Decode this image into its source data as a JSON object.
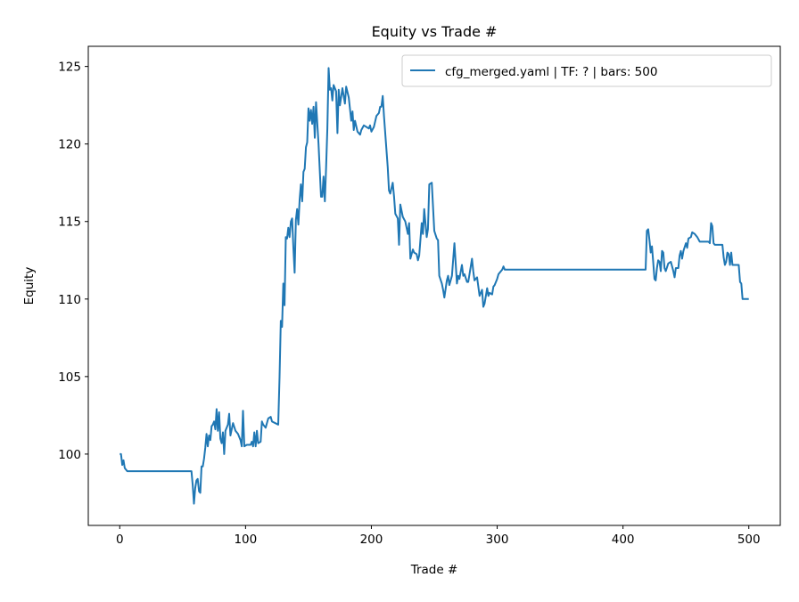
{
  "chart_data": {
    "type": "line",
    "title": "Equity vs Trade #",
    "xlabel": "Trade #",
    "ylabel": "Equity",
    "xlim": [
      -25,
      525
    ],
    "ylim": [
      95.4,
      126.3
    ],
    "xticks": [
      0,
      100,
      200,
      300,
      400,
      500
    ],
    "yticks": [
      100,
      105,
      110,
      115,
      120,
      125
    ],
    "grid": false,
    "legend_placement": "upper-right",
    "series": [
      {
        "name": "cfg_merged.yaml | TF: ? | bars: 500",
        "color": "#1f77b4",
        "points": [
          [
            0,
            100
          ],
          [
            1,
            100
          ],
          [
            2,
            99.3
          ],
          [
            3,
            99.6
          ],
          [
            4,
            99.1
          ],
          [
            6,
            98.9
          ],
          [
            57,
            98.9
          ],
          [
            58,
            98.0
          ],
          [
            59,
            96.8
          ],
          [
            60,
            97.8
          ],
          [
            61,
            98.3
          ],
          [
            62,
            98.4
          ],
          [
            63,
            97.6
          ],
          [
            64,
            97.5
          ],
          [
            65,
            99.2
          ],
          [
            66,
            99.2
          ],
          [
            67,
            99.7
          ],
          [
            68,
            100.4
          ],
          [
            69,
            101.3
          ],
          [
            70,
            100.5
          ],
          [
            71,
            101.2
          ],
          [
            72,
            100.9
          ],
          [
            73,
            101.8
          ],
          [
            74,
            101.9
          ],
          [
            75,
            102.1
          ],
          [
            76,
            101.6
          ],
          [
            77,
            102.9
          ],
          [
            78,
            101.5
          ],
          [
            79,
            102.7
          ],
          [
            80,
            101.0
          ],
          [
            81,
            100.7
          ],
          [
            82,
            101.4
          ],
          [
            83,
            100.0
          ],
          [
            84,
            101.5
          ],
          [
            86,
            101.9
          ],
          [
            87,
            102.6
          ],
          [
            88,
            101.2
          ],
          [
            90,
            102.0
          ],
          [
            92,
            101.5
          ],
          [
            94,
            101.3
          ],
          [
            96,
            100.9
          ],
          [
            97,
            100.5
          ],
          [
            98,
            102.8
          ],
          [
            99,
            100.5
          ],
          [
            101,
            100.6
          ],
          [
            104,
            100.6
          ],
          [
            105,
            100.8
          ],
          [
            106,
            100.5
          ],
          [
            107,
            101.4
          ],
          [
            108,
            100.5
          ],
          [
            109,
            101.5
          ],
          [
            110,
            100.7
          ],
          [
            112,
            100.8
          ],
          [
            113,
            102.1
          ],
          [
            114,
            101.9
          ],
          [
            116,
            101.7
          ],
          [
            118,
            102.3
          ],
          [
            120,
            102.4
          ],
          [
            121,
            102.1
          ],
          [
            126,
            101.9
          ],
          [
            127,
            105
          ],
          [
            128,
            108.6
          ],
          [
            129,
            108.2
          ],
          [
            130,
            111
          ],
          [
            131,
            109.6
          ],
          [
            132,
            114
          ],
          [
            133,
            113.9
          ],
          [
            134,
            114.6
          ],
          [
            135,
            114.0
          ],
          [
            136,
            115.0
          ],
          [
            137,
            115.2
          ],
          [
            138,
            113.3
          ],
          [
            139,
            111.7
          ],
          [
            140,
            115.1
          ],
          [
            141,
            115.8
          ],
          [
            142,
            114.8
          ],
          [
            143,
            116.4
          ],
          [
            144,
            117.4
          ],
          [
            145,
            116.3
          ],
          [
            146,
            118.2
          ],
          [
            147,
            118.4
          ],
          [
            148,
            119.8
          ],
          [
            149,
            120.1
          ],
          [
            150,
            122.3
          ],
          [
            151,
            121.5
          ],
          [
            152,
            122.2
          ],
          [
            153,
            121.3
          ],
          [
            154,
            122.4
          ],
          [
            155,
            120.4
          ],
          [
            156,
            122.7
          ],
          [
            158,
            120
          ],
          [
            160,
            116.6
          ],
          [
            161,
            116.6
          ],
          [
            162,
            117.9
          ],
          [
            163,
            116.3
          ],
          [
            164,
            118.5
          ],
          [
            165,
            121
          ],
          [
            166,
            124.9
          ],
          [
            167,
            123.5
          ],
          [
            168,
            123.6
          ],
          [
            169,
            122.8
          ],
          [
            170,
            123.8
          ],
          [
            172,
            123.4
          ],
          [
            173,
            120.7
          ],
          [
            174,
            123.5
          ],
          [
            175,
            122.5
          ],
          [
            177,
            123.6
          ],
          [
            179,
            122.6
          ],
          [
            180,
            123.7
          ],
          [
            182,
            123.0
          ],
          [
            184,
            121.5
          ],
          [
            185,
            122.1
          ],
          [
            186,
            120.9
          ],
          [
            187,
            121.5
          ],
          [
            189,
            120.8
          ],
          [
            191,
            120.6
          ],
          [
            192,
            120.9
          ],
          [
            194,
            121.2
          ],
          [
            196,
            121.1
          ],
          [
            198,
            121.0
          ],
          [
            199,
            121.2
          ],
          [
            200,
            120.8
          ],
          [
            202,
            121.1
          ],
          [
            204,
            121.8
          ],
          [
            206,
            122.0
          ],
          [
            207,
            122.4
          ],
          [
            208,
            122.4
          ],
          [
            209,
            123.1
          ],
          [
            210,
            121.8
          ],
          [
            213,
            118.5
          ],
          [
            214,
            117.0
          ],
          [
            215,
            116.8
          ],
          [
            217,
            117.5
          ],
          [
            218,
            116.6
          ],
          [
            219,
            115.5
          ],
          [
            221,
            115.2
          ],
          [
            222,
            113.5
          ],
          [
            223,
            116.1
          ],
          [
            225,
            115.3
          ],
          [
            227,
            115.0
          ],
          [
            229,
            114.2
          ],
          [
            230,
            114.9
          ],
          [
            231,
            112.6
          ],
          [
            233,
            113.2
          ],
          [
            234,
            113.0
          ],
          [
            236,
            112.9
          ],
          [
            237,
            112.5
          ],
          [
            238,
            112.8
          ],
          [
            240,
            114.9
          ],
          [
            241,
            114.2
          ],
          [
            242,
            115.8
          ],
          [
            244,
            114.0
          ],
          [
            245,
            114.5
          ],
          [
            246,
            117.4
          ],
          [
            248,
            117.5
          ],
          [
            250,
            114.4
          ],
          [
            252,
            113.9
          ],
          [
            253,
            113.8
          ],
          [
            254,
            111.5
          ],
          [
            256,
            111.0
          ],
          [
            257,
            110.6
          ],
          [
            258,
            110.1
          ],
          [
            260,
            111.2
          ],
          [
            261,
            111.5
          ],
          [
            262,
            110.9
          ],
          [
            264,
            111.5
          ],
          [
            266,
            113.6
          ],
          [
            268,
            111.0
          ],
          [
            269,
            111.5
          ],
          [
            270,
            111.3
          ],
          [
            272,
            112.2
          ],
          [
            273,
            111.5
          ],
          [
            274,
            111.6
          ],
          [
            276,
            111.1
          ],
          [
            277,
            111.1
          ],
          [
            280,
            112.6
          ],
          [
            281,
            111.8
          ],
          [
            282,
            111.2
          ],
          [
            284,
            111.4
          ],
          [
            285,
            110.8
          ],
          [
            286,
            110.2
          ],
          [
            288,
            110.6
          ],
          [
            289,
            109.5
          ],
          [
            290,
            109.7
          ],
          [
            292,
            110.7
          ],
          [
            293,
            110.2
          ],
          [
            294,
            110.4
          ],
          [
            296,
            110.3
          ],
          [
            297,
            110.8
          ],
          [
            298,
            110.9
          ],
          [
            300,
            111.3
          ],
          [
            301,
            111.6
          ],
          [
            304,
            111.9
          ],
          [
            305,
            112.1
          ],
          [
            306,
            111.9
          ],
          [
            418,
            111.9
          ],
          [
            419,
            114.4
          ],
          [
            420,
            114.5
          ],
          [
            421,
            113.8
          ],
          [
            422,
            113.0
          ],
          [
            423,
            113.4
          ],
          [
            424,
            112.4
          ],
          [
            425,
            111.3
          ],
          [
            426,
            111.2
          ],
          [
            427,
            112.0
          ],
          [
            428,
            112.5
          ],
          [
            429,
            112.4
          ],
          [
            430,
            111.8
          ],
          [
            431,
            113.1
          ],
          [
            432,
            113.0
          ],
          [
            433,
            112.0
          ],
          [
            434,
            111.8
          ],
          [
            436,
            112.3
          ],
          [
            438,
            112.4
          ],
          [
            440,
            111.8
          ],
          [
            441,
            111.4
          ],
          [
            442,
            112.0
          ],
          [
            444,
            112.0
          ],
          [
            445,
            112.8
          ],
          [
            446,
            113.1
          ],
          [
            447,
            112.6
          ],
          [
            448,
            113.1
          ],
          [
            450,
            113.6
          ],
          [
            451,
            113.3
          ],
          [
            452,
            113.9
          ],
          [
            454,
            114.0
          ],
          [
            455,
            114.3
          ],
          [
            457,
            114.2
          ],
          [
            459,
            114.0
          ],
          [
            461,
            113.7
          ],
          [
            468,
            113.7
          ],
          [
            469,
            113.6
          ],
          [
            470,
            114.9
          ],
          [
            471,
            114.7
          ],
          [
            472,
            113.6
          ],
          [
            473,
            113.5
          ],
          [
            479,
            113.5
          ],
          [
            480,
            112.7
          ],
          [
            481,
            112.2
          ],
          [
            482,
            112.4
          ],
          [
            483,
            113.0
          ],
          [
            484,
            112.9
          ],
          [
            485,
            112.2
          ],
          [
            486,
            113.0
          ],
          [
            487,
            112.2
          ],
          [
            492,
            112.2
          ],
          [
            493,
            111.1
          ],
          [
            494,
            111.0
          ],
          [
            495,
            110.0
          ],
          [
            500,
            110.0
          ]
        ]
      }
    ]
  }
}
